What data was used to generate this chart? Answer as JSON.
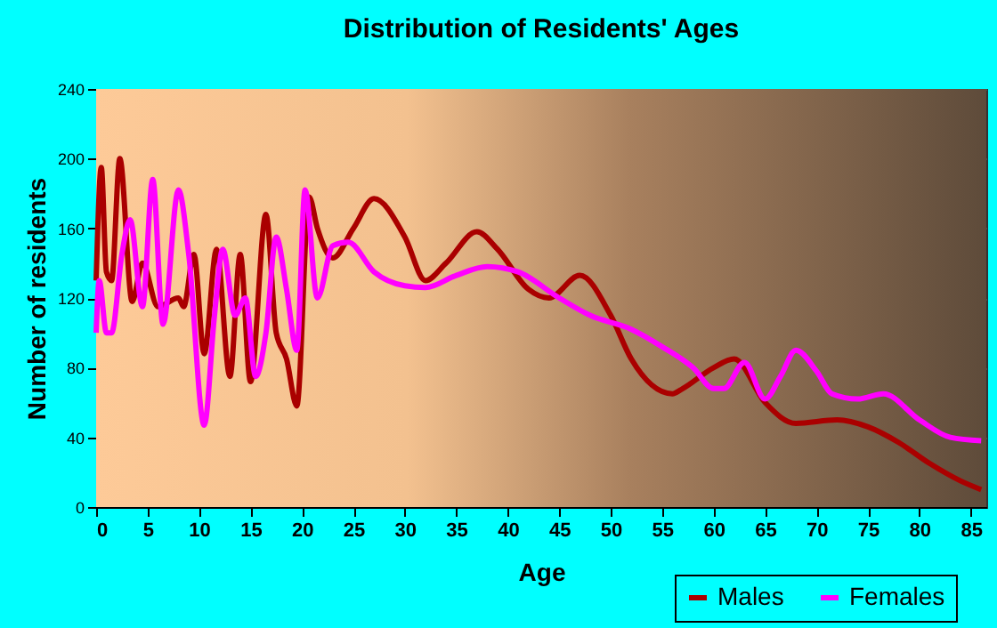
{
  "chart_data": {
    "type": "line",
    "title": "Distribution of Residents' Ages",
    "xlabel": "Age",
    "ylabel": "Number of residents",
    "xlim": [
      0,
      86.5
    ],
    "xticks": [
      0,
      5,
      10,
      15,
      20,
      25,
      30,
      35,
      40,
      45,
      50,
      55,
      60,
      65,
      70,
      75,
      80,
      85
    ],
    "ylim": [
      0,
      240
    ],
    "yticks": [
      0,
      40,
      80,
      120,
      160,
      200,
      240
    ],
    "grid": true,
    "legend": "bottom right",
    "series": [
      {
        "name": "Males",
        "color": "#aa0000",
        "x": [
          0,
          0.5,
          1,
          1.5,
          2.3,
          3.5,
          4.5,
          6,
          8,
          8.5,
          9.5,
          10.5,
          11.7,
          13,
          14,
          15,
          16.5,
          17.5,
          18.5,
          19.5,
          20.7,
          21.5,
          23,
          25,
          27,
          30,
          32,
          34,
          37,
          39,
          42,
          44,
          47,
          50,
          52,
          56,
          57,
          60,
          62,
          65,
          68,
          72,
          75,
          78,
          81,
          84,
          86
        ],
        "values": [
          130,
          195,
          135,
          130,
          200,
          118,
          140,
          115,
          120,
          115,
          145,
          88,
          148,
          75,
          145,
          72,
          168,
          100,
          85,
          58,
          178,
          160,
          143,
          160,
          177,
          155,
          130,
          140,
          158,
          148,
          125,
          120,
          133,
          110,
          85,
          65,
          68,
          80,
          85,
          60,
          48,
          50,
          46,
          37,
          25,
          15,
          10
        ]
      },
      {
        "name": "Females",
        "color": "#ff00ff",
        "x": [
          0,
          0.3,
          1,
          1.5,
          2.5,
          3.3,
          4.5,
          5.5,
          6.5,
          8,
          9,
          10.5,
          11.5,
          12.3,
          13.5,
          14.5,
          15.5,
          16.5,
          17.5,
          18.5,
          19.5,
          20.3,
          21.5,
          23,
          24.5,
          27,
          30,
          32,
          35,
          38,
          41,
          45,
          48,
          52,
          55,
          58,
          60,
          61,
          63,
          65,
          66.5,
          68,
          70,
          71.5,
          74,
          76.5,
          80,
          83,
          86
        ],
        "values": [
          100,
          130,
          100,
          100,
          145,
          165,
          115,
          188,
          105,
          182,
          145,
          47,
          110,
          148,
          110,
          120,
          75,
          100,
          155,
          125,
          90,
          182,
          120,
          150,
          152,
          135,
          127,
          126,
          133,
          138,
          135,
          120,
          110,
          102,
          92,
          80,
          68,
          68,
          83,
          62,
          75,
          90,
          78,
          65,
          62,
          65,
          50,
          40,
          38
        ]
      }
    ]
  }
}
